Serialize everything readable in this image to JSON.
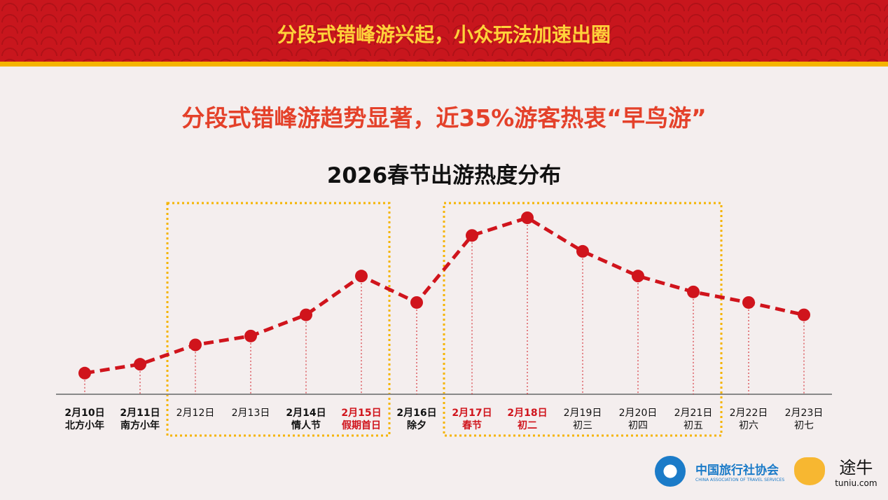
{
  "banner": {
    "title": "分段式错峰游兴起，小众玩法加速出圈"
  },
  "subtitle": "分段式错峰游趋势显著，近35%游客热衷“早鸟游”",
  "chart_data": {
    "type": "line",
    "title": "2026春节出游热度分布",
    "categories": [
      {
        "date": "2月10日",
        "note": "北方小年",
        "bold": true,
        "red": false
      },
      {
        "date": "2月11日",
        "note": "南方小年",
        "bold": true,
        "red": false
      },
      {
        "date": "2月12日",
        "note": "",
        "bold": false,
        "red": false
      },
      {
        "date": "2月13日",
        "note": "",
        "bold": false,
        "red": false
      },
      {
        "date": "2月14日",
        "note": "情人节",
        "bold": true,
        "red": false
      },
      {
        "date": "2月15日",
        "note": "假期首日",
        "bold": true,
        "red": true
      },
      {
        "date": "2月16日",
        "note": "除夕",
        "bold": true,
        "red": false
      },
      {
        "date": "2月17日",
        "note": "春节",
        "bold": true,
        "red": true
      },
      {
        "date": "2月18日",
        "note": "初二",
        "bold": true,
        "red": true
      },
      {
        "date": "2月19日",
        "note": "初三",
        "bold": false,
        "red": false
      },
      {
        "date": "2月20日",
        "note": "初四",
        "bold": false,
        "red": false
      },
      {
        "date": "2月21日",
        "note": "初五",
        "bold": false,
        "red": false
      },
      {
        "date": "2月22日",
        "note": "初六",
        "bold": false,
        "red": false
      },
      {
        "date": "2月23日",
        "note": "初七",
        "bold": false,
        "red": false
      }
    ],
    "values": [
      12,
      17,
      28,
      33,
      45,
      67,
      52,
      90,
      100,
      81,
      67,
      58,
      52,
      45
    ],
    "ylim": [
      0,
      100
    ],
    "grid": false,
    "highlight_ranges": [
      [
        2,
        5
      ],
      [
        7,
        11
      ]
    ],
    "colors": {
      "line": "#d0141c",
      "highlight_red": "#d0141c",
      "box": "#f5b400",
      "axis": "#888888"
    }
  },
  "logos": {
    "cats_cn": "中国旅行社协会",
    "cats_en": "CHINA ASSOCIATION OF TRAVEL SERVICES",
    "tuniu_cn": "途牛",
    "tuniu_en": "tuniu.com"
  }
}
